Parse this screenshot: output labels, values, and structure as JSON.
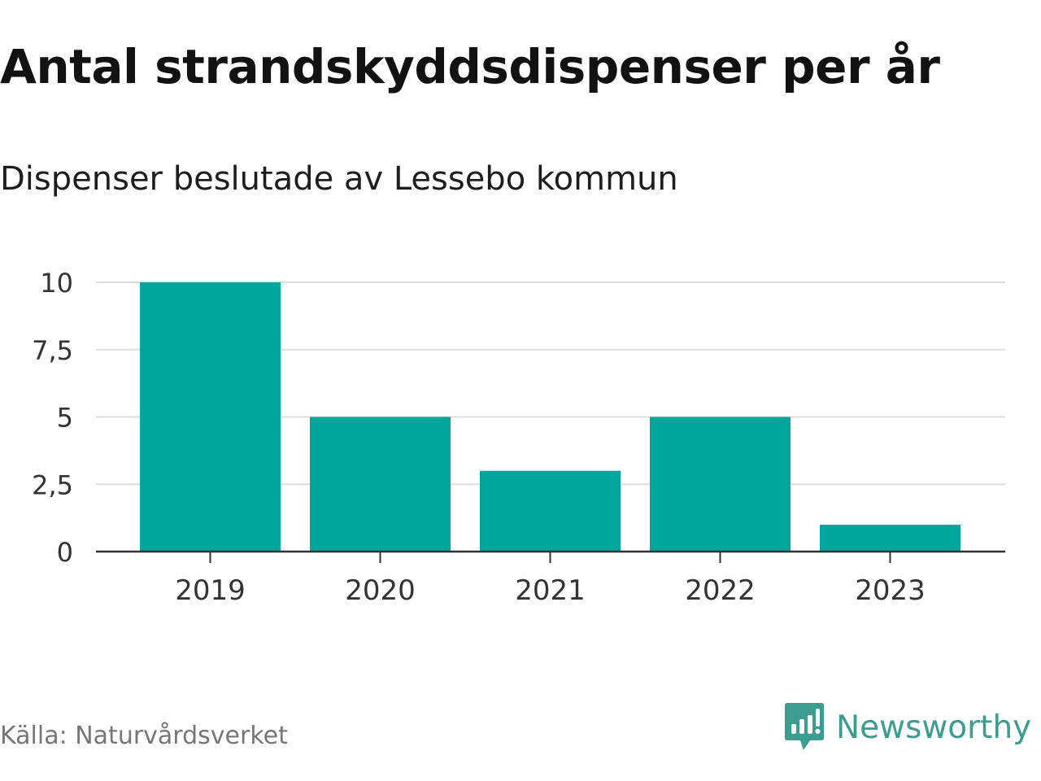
{
  "title": "Antal strandskyddsdispenser per år",
  "subtitle": "Dispenser beslutade av Lessebo kommun",
  "source": "Källa: Naturvårdsverket",
  "brand": {
    "name": "Newsworthy",
    "icon": "newsworthy-logo-icon"
  },
  "colors": {
    "bar": "#00a59b",
    "grid": "#dddddd",
    "axis": "#333333",
    "brand": "#3a9d8f"
  },
  "chart_data": {
    "type": "bar",
    "categories": [
      "2019",
      "2020",
      "2021",
      "2022",
      "2023"
    ],
    "values": [
      10,
      5,
      3,
      5,
      1
    ],
    "ylim": [
      0,
      10
    ],
    "yticks": [
      0,
      2.5,
      5,
      7.5,
      10
    ],
    "ytick_labels": [
      "0",
      "2,5",
      "5",
      "7,5",
      "10"
    ],
    "grid": true,
    "xlabel": "",
    "ylabel": ""
  }
}
